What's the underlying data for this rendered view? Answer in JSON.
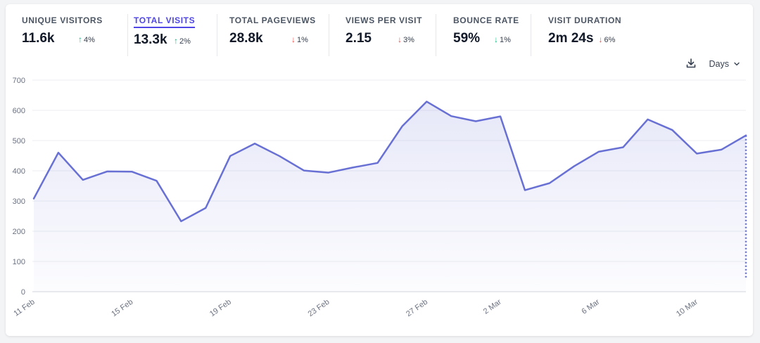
{
  "metrics": [
    {
      "label": "UNIQUE VISITORS",
      "value": "11.6k",
      "change": "4%",
      "direction": "up",
      "change_color": "#10b981",
      "active": false
    },
    {
      "label": "TOTAL VISITS",
      "value": "13.3k",
      "change": "2%",
      "direction": "up",
      "change_color": "#10b981",
      "active": true
    },
    {
      "label": "TOTAL PAGEVIEWS",
      "value": "28.8k",
      "change": "1%",
      "direction": "down",
      "change_color": "#ef4444",
      "active": false
    },
    {
      "label": "VIEWS PER VISIT",
      "value": "2.15",
      "change": "3%",
      "direction": "down",
      "change_color": "#ef4444",
      "active": false
    },
    {
      "label": "BOUNCE RATE",
      "value": "59%",
      "change": "1%",
      "direction": "down",
      "change_color": "#10b981",
      "active": false
    },
    {
      "label": "VISIT DURATION",
      "value": "2m 24s",
      "change": "6%",
      "direction": "down",
      "change_color": "#ef4444",
      "active": false
    }
  ],
  "controls": {
    "download_icon": "download-icon",
    "interval_label": "Days",
    "interval_icon": "chevron-down-icon"
  },
  "colors": {
    "accent": "#4f46e5",
    "line": "#6870d4",
    "up": "#10b981",
    "down": "#ef4444"
  },
  "chart_data": {
    "type": "line",
    "title": "",
    "xlabel": "",
    "ylabel": "",
    "ylim": [
      0,
      700
    ],
    "yticks": [
      0,
      100,
      200,
      300,
      400,
      500,
      600,
      700
    ],
    "grid": true,
    "fill": true,
    "x": [
      "11 Feb",
      "12 Feb",
      "13 Feb",
      "14 Feb",
      "15 Feb",
      "16 Feb",
      "17 Feb",
      "18 Feb",
      "19 Feb",
      "20 Feb",
      "21 Feb",
      "22 Feb",
      "23 Feb",
      "24 Feb",
      "25 Feb",
      "26 Feb",
      "27 Feb",
      "28 Feb",
      "1 Mar",
      "2 Mar",
      "3 Mar",
      "4 Mar",
      "5 Mar",
      "6 Mar",
      "7 Mar",
      "8 Mar",
      "9 Mar",
      "10 Mar",
      "11 Mar",
      "12 Mar"
    ],
    "xtick_labels": [
      "11 Feb",
      "15 Feb",
      "19 Feb",
      "23 Feb",
      "27 Feb",
      "2 Mar",
      "6 Mar",
      "10 Mar"
    ],
    "series": [
      {
        "values": [
          308,
          460,
          370,
          398,
          397,
          367,
          233,
          277,
          449,
          490,
          449,
          401,
          394,
          411,
          426,
          547,
          629,
          581,
          564,
          580,
          336,
          359,
          415,
          463,
          478,
          570,
          535,
          457,
          470,
          517
        ],
        "partial_last_value": 40
      }
    ]
  }
}
